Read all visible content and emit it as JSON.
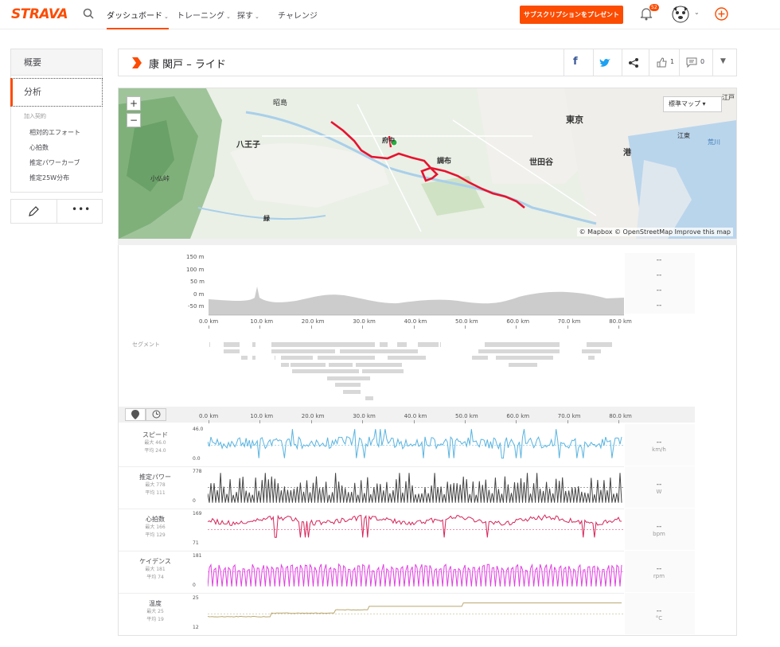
{
  "nav": {
    "logo": "STRAVA",
    "items": [
      "ダッシュボード",
      "トレーニング",
      "探す",
      "チャレンジ"
    ],
    "subscribe": "サブスクリプションをプレゼント",
    "notif_count": "52"
  },
  "sidebar": {
    "overview": "概要",
    "analysis": "分析",
    "premium_label": "加入契約",
    "sub_items": [
      "相対的エフォート",
      "心拍数",
      "推定パワーカーブ",
      "推定25W分布"
    ]
  },
  "header": {
    "title": "康 関戸 – ライド",
    "kudos": "1",
    "comments": "0"
  },
  "map": {
    "style_button": "標準マップ",
    "labels": [
      "昭島",
      "八王子",
      "小仏峠",
      "府中",
      "調布",
      "東京",
      "世田谷",
      "港",
      "江東",
      "荒川",
      "緑",
      "江戸"
    ],
    "attribution": "© Mapbox © OpenStreetMap Improve this map"
  },
  "elevation": {
    "y_ticks": [
      "150 m",
      "100 m",
      "50 m",
      "0 m",
      "-50 m"
    ],
    "values": [
      "--",
      "--",
      "--",
      "--"
    ]
  },
  "x_ticks": [
    "0.0 km",
    "10.0 km",
    "20.0 km",
    "30.0 km",
    "40.0 km",
    "50.0 km",
    "60.0 km",
    "70.0 km",
    "80.0 km"
  ],
  "segments_label": "セグメント",
  "metrics": [
    {
      "name": "スピード",
      "max": "最大 46.0",
      "avg": "平均 24.0",
      "top": "46.0",
      "bottom": "0.0",
      "value": "--",
      "unit": "km/h",
      "color": "#5ab4e0"
    },
    {
      "name": "推定パワー",
      "max": "最大 778",
      "avg": "平均 111",
      "top": "778",
      "bottom": "0",
      "value": "--",
      "unit": "W",
      "color": "#444444"
    },
    {
      "name": "心拍数",
      "max": "最大 166",
      "avg": "平均 129",
      "top": "169",
      "bottom": "71",
      "value": "--",
      "unit": "bpm",
      "color": "#d6245a"
    },
    {
      "name": "ケイデンス",
      "max": "最大 181",
      "avg": "平均 74",
      "top": "181",
      "bottom": "0",
      "value": "--",
      "unit": "rpm",
      "color": "#e040e0"
    },
    {
      "name": "温度",
      "max": "最大 25",
      "avg": "平均 19",
      "top": "25",
      "bottom": "12",
      "value": "--",
      "unit": "°C",
      "color": "#b8a872"
    }
  ]
}
